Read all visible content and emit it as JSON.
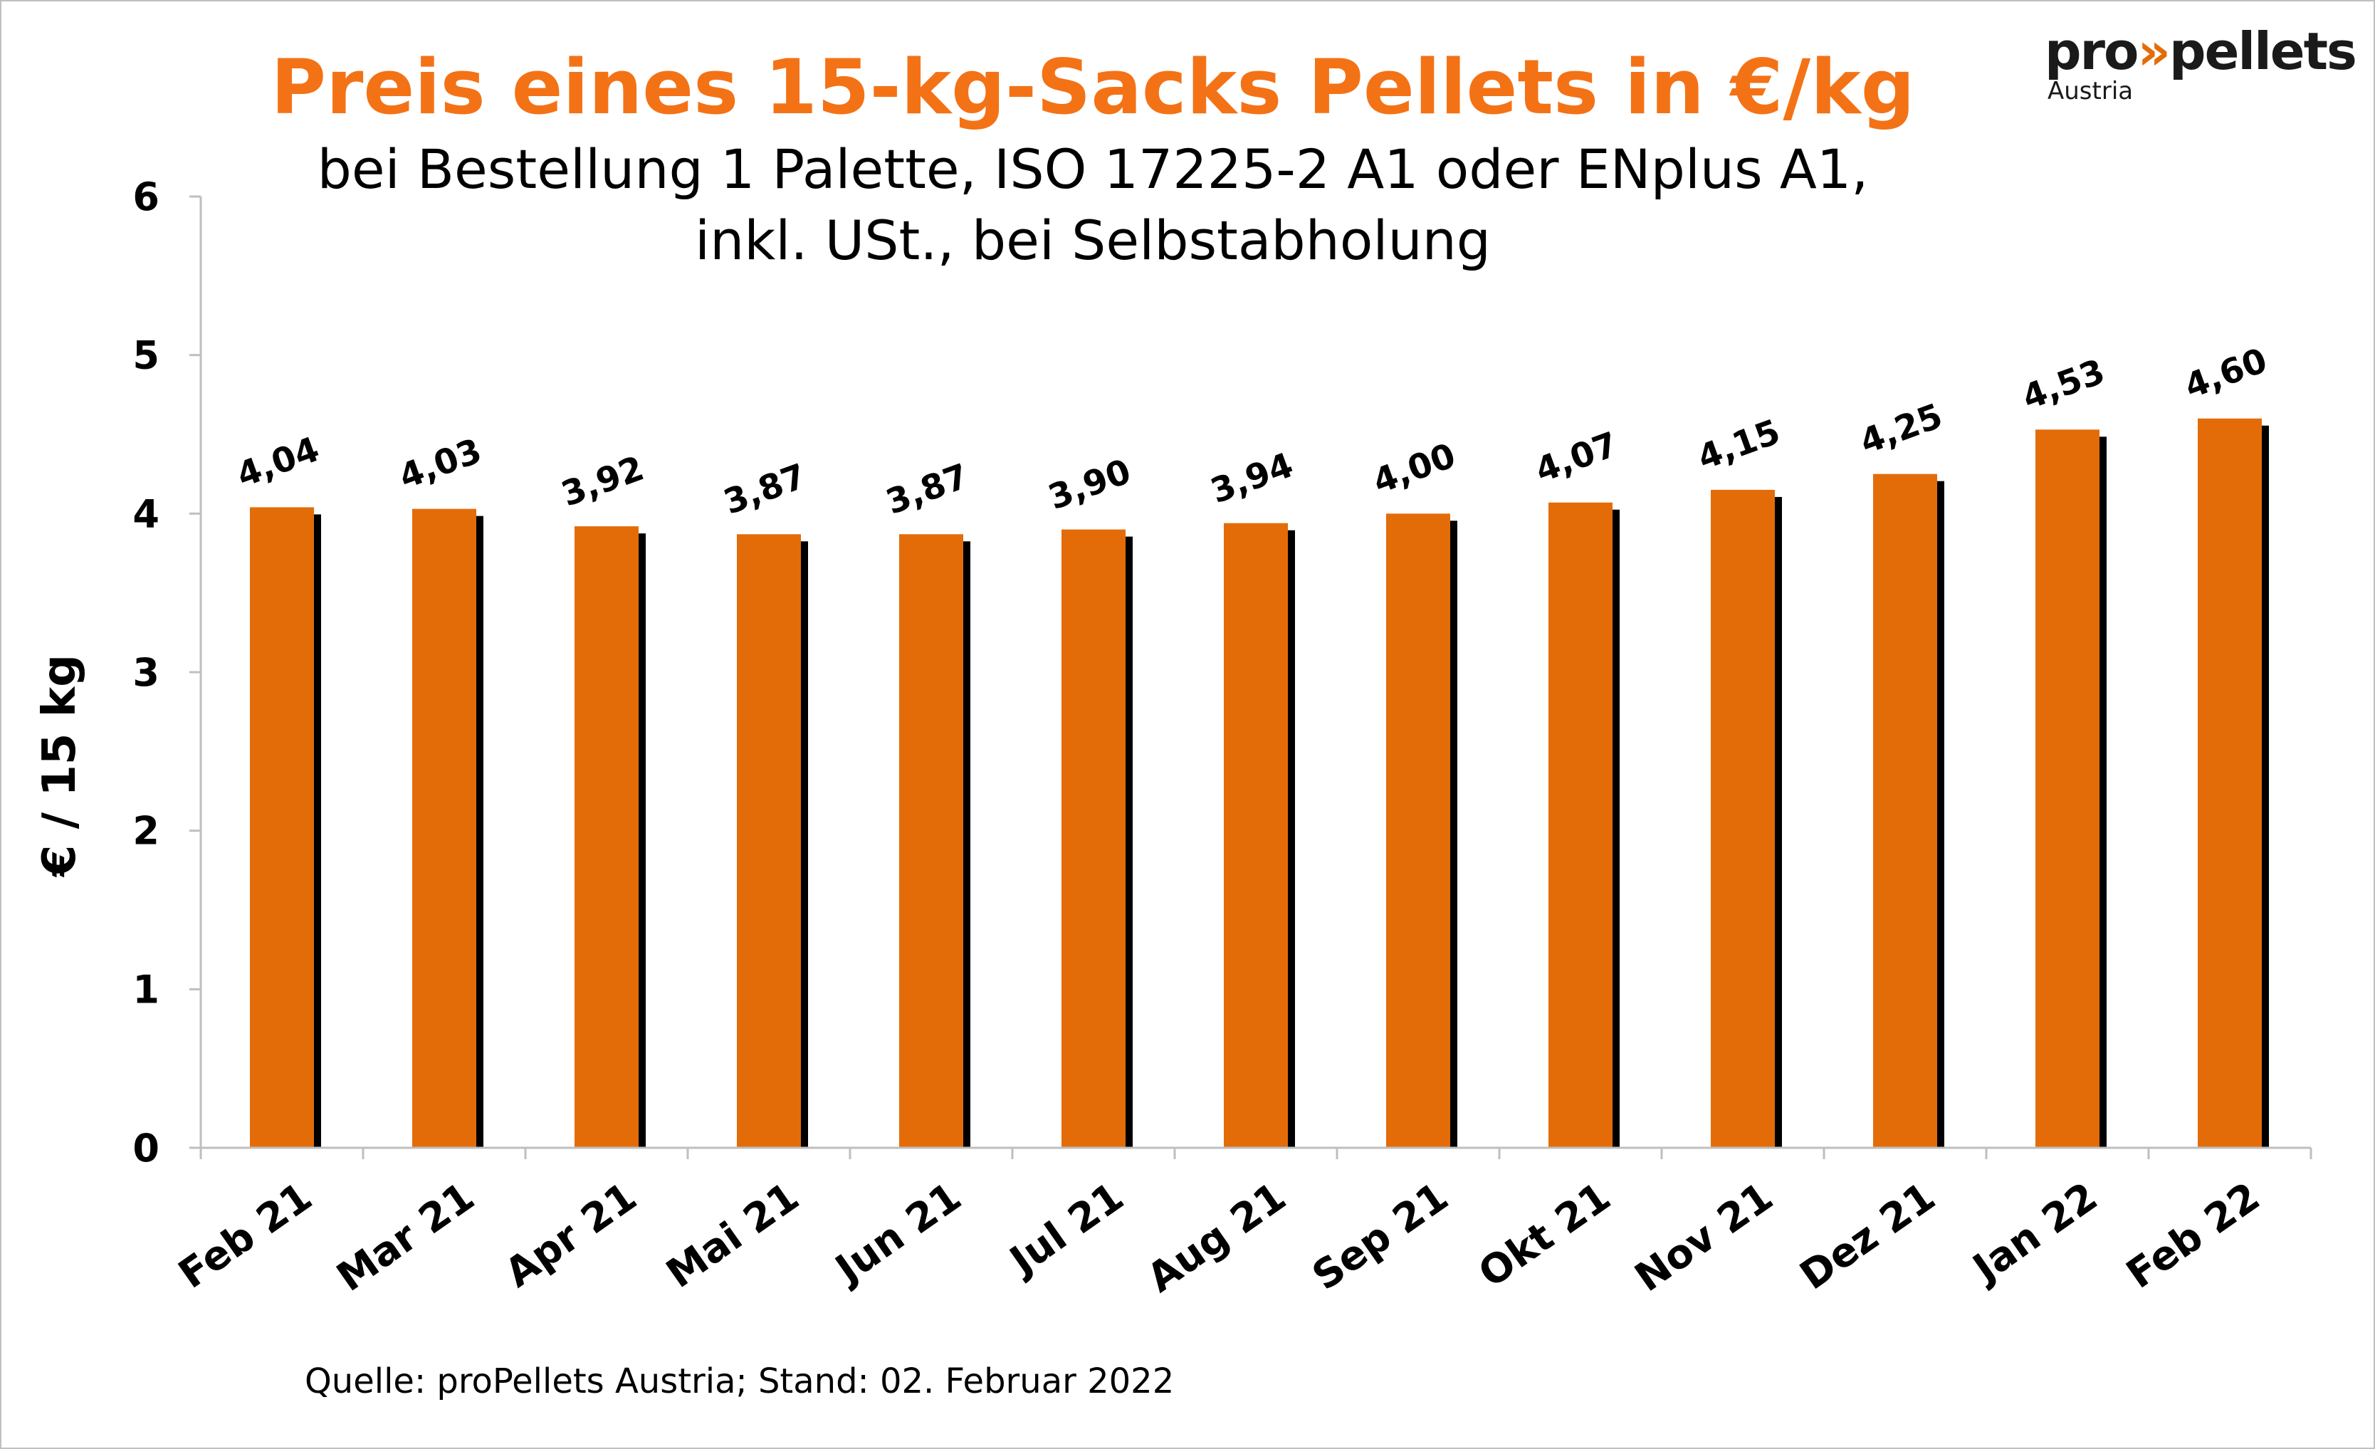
{
  "title": "Preis eines 15-kg-Sacks Pellets in €/kg",
  "subtitle_line1": "bei Bestellung 1 Palette, ISO 17225-2 A1 oder ENplus A1,",
  "subtitle_line2": "inkl. USt., bei Selbstabholung",
  "source": "Quelle: proPellets Austria; Stand: 02. Februar 2022",
  "logo": {
    "brand_left": "pro",
    "brand_chevrons": "»",
    "brand_right": "pellets",
    "sub": "Austria"
  },
  "colors": {
    "bar": "#e36c09",
    "bar_shadow": "#000000",
    "title": "#f47216",
    "axis": "#bfbfbf"
  },
  "chart_data": {
    "type": "bar",
    "ylabel": "€ / 15 kg",
    "ylim": [
      0,
      6
    ],
    "yticks": [
      0,
      1,
      2,
      3,
      4,
      5,
      6
    ],
    "grid": false,
    "categories": [
      "Feb 21",
      "Mar 21",
      "Apr 21",
      "Mai 21",
      "Jun 21",
      "Jul 21",
      "Aug 21",
      "Sep 21",
      "Okt 21",
      "Nov 21",
      "Dez 21",
      "Jan 22",
      "Feb 22"
    ],
    "values": [
      4.04,
      4.03,
      3.92,
      3.87,
      3.87,
      3.9,
      3.94,
      4.0,
      4.07,
      4.15,
      4.25,
      4.53,
      4.6
    ],
    "data_labels": [
      "4,04",
      "4,03",
      "3,92",
      "3,87",
      "3,87",
      "3,90",
      "3,94",
      "4,00",
      "4,07",
      "4,15",
      "4,25",
      "4,53",
      "4,60"
    ]
  }
}
